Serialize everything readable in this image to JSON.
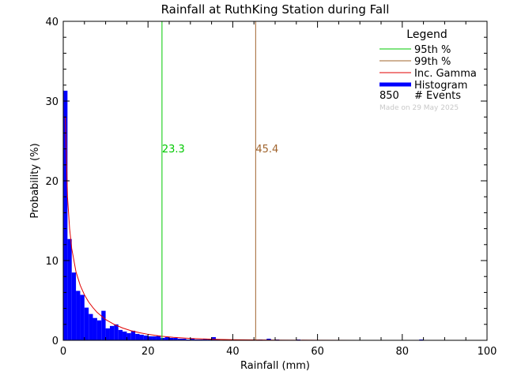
{
  "chart_data": {
    "type": "bar",
    "title": "Rainfall at RuthKing Station during Fall",
    "xlabel": "Rainfall (mm)",
    "ylabel": "Probability (%)",
    "xlim": [
      0,
      100
    ],
    "ylim": [
      0,
      40
    ],
    "x_ticks": [
      "0",
      "20",
      "40",
      "60",
      "80",
      "100"
    ],
    "y_ticks": [
      "0",
      "10",
      "20",
      "30",
      "40"
    ],
    "histogram": {
      "bin_width": 1,
      "bins": [
        {
          "x": 0,
          "y": 31.3
        },
        {
          "x": 1,
          "y": 12.7
        },
        {
          "x": 2,
          "y": 8.5
        },
        {
          "x": 3,
          "y": 6.2
        },
        {
          "x": 4,
          "y": 5.7
        },
        {
          "x": 5,
          "y": 4.1
        },
        {
          "x": 6,
          "y": 3.3
        },
        {
          "x": 7,
          "y": 2.8
        },
        {
          "x": 8,
          "y": 2.5
        },
        {
          "x": 9,
          "y": 3.7
        },
        {
          "x": 10,
          "y": 1.5
        },
        {
          "x": 11,
          "y": 1.8
        },
        {
          "x": 12,
          "y": 2.0
        },
        {
          "x": 13,
          "y": 1.3
        },
        {
          "x": 14,
          "y": 1.1
        },
        {
          "x": 15,
          "y": 0.9
        },
        {
          "x": 16,
          "y": 1.2
        },
        {
          "x": 17,
          "y": 0.8
        },
        {
          "x": 18,
          "y": 0.7
        },
        {
          "x": 19,
          "y": 0.6
        },
        {
          "x": 20,
          "y": 0.5
        },
        {
          "x": 21,
          "y": 0.5
        },
        {
          "x": 22,
          "y": 0.6
        },
        {
          "x": 23,
          "y": 0.3
        },
        {
          "x": 24,
          "y": 0.4
        },
        {
          "x": 25,
          "y": 0.3
        },
        {
          "x": 26,
          "y": 0.3
        },
        {
          "x": 27,
          "y": 0.2
        },
        {
          "x": 28,
          "y": 0.2
        },
        {
          "x": 29,
          "y": 0.1
        },
        {
          "x": 30,
          "y": 0.2
        },
        {
          "x": 31,
          "y": 0.1
        },
        {
          "x": 32,
          "y": 0.1
        },
        {
          "x": 33,
          "y": 0.2
        },
        {
          "x": 34,
          "y": 0.1
        },
        {
          "x": 35,
          "y": 0.4
        },
        {
          "x": 36,
          "y": 0.1
        },
        {
          "x": 38,
          "y": 0.1
        },
        {
          "x": 40,
          "y": 0.1
        },
        {
          "x": 42,
          "y": 0.1
        },
        {
          "x": 46,
          "y": 0.1
        },
        {
          "x": 48,
          "y": 0.2
        },
        {
          "x": 50,
          "y": 0.1
        },
        {
          "x": 55,
          "y": 0.1
        },
        {
          "x": 84,
          "y": 0.1
        }
      ]
    },
    "gamma_curve": {
      "x": [
        0.5,
        1,
        1.5,
        2,
        3,
        4,
        5,
        6,
        7,
        8,
        10,
        12,
        14,
        16,
        18,
        20,
        23,
        26,
        30,
        35,
        40,
        45,
        50,
        60,
        70,
        80,
        90,
        100
      ],
      "y": [
        28.0,
        18.0,
        14.0,
        11.5,
        8.6,
        6.9,
        5.7,
        4.8,
        4.1,
        3.5,
        2.6,
        2.0,
        1.55,
        1.2,
        0.95,
        0.75,
        0.52,
        0.37,
        0.24,
        0.14,
        0.08,
        0.05,
        0.03,
        0.012,
        0.005,
        0.002,
        0.001,
        0.0005
      ]
    },
    "percentiles": [
      {
        "key": "p95",
        "value": 23.3,
        "label": "23.3",
        "color": "#00c800"
      },
      {
        "key": "p99",
        "value": 45.4,
        "label": "45.4",
        "color": "#a0642d"
      }
    ],
    "legend": {
      "title": "Legend",
      "placement": "top-right",
      "items": [
        {
          "label": "95th %",
          "color": "#00c800",
          "style": "line"
        },
        {
          "label": "99th %",
          "color": "#a0642d",
          "style": "line"
        },
        {
          "label": "Inc. Gamma",
          "color": "#e00000",
          "style": "line"
        },
        {
          "label": "Histogram",
          "color": "#0000ff",
          "style": "thick"
        }
      ],
      "events_count": "850",
      "events_label": "# Events",
      "made_on": "Made on 29 May 2025"
    },
    "colors": {
      "histogram": "#0000ff",
      "gamma": "#e00000",
      "axis": "#000000",
      "made_on": "#c8c8c8"
    }
  }
}
